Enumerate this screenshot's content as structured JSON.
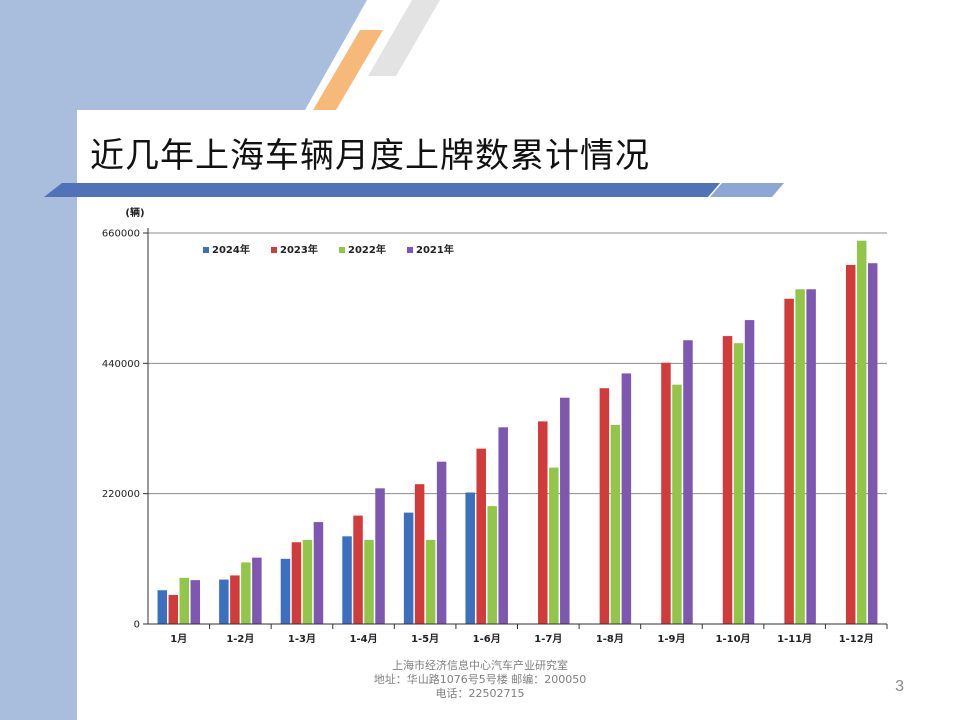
{
  "slide": {
    "title": "近几年上海车辆月度上牌数累计情况",
    "page_number": "3",
    "footer": {
      "line1": "上海市经济信息中心汽车产业研究室",
      "line2": "地址：华山路1076号5号楼   邮编：200050",
      "line3": "电话：22502715"
    }
  },
  "colors": {
    "left_band": "#a9bedd",
    "title_bar": "#4f72b8",
    "accent_orange": "#f7b97a",
    "accent_gray": "#e3e3e3"
  },
  "chart_data": {
    "type": "bar",
    "unit_label": "(辆)",
    "title": "",
    "xlabel": "",
    "ylabel": "",
    "ylim": [
      0,
      660000
    ],
    "yticks": [
      0,
      220000,
      440000,
      660000
    ],
    "ytick_labels": [
      "0",
      "220000",
      "440000",
      "660000"
    ],
    "grid": true,
    "legend_position": "top-left",
    "categories": [
      "1月",
      "1-2月",
      "1-3月",
      "1-4月",
      "1-5月",
      "1-6月",
      "1-7月",
      "1-8月",
      "1-9月",
      "1-10月",
      "1-11月",
      "1-12月"
    ],
    "series": [
      {
        "name": "2024年",
        "color": "#3b70c0",
        "values": [
          57000,
          75000,
          110000,
          148000,
          188000,
          222000,
          null,
          null,
          null,
          null,
          null,
          null
        ]
      },
      {
        "name": "2023年",
        "color": "#d13b3b",
        "values": [
          49000,
          82000,
          138000,
          183000,
          236000,
          296000,
          342000,
          398000,
          441000,
          486000,
          549000,
          606000
        ]
      },
      {
        "name": "2022年",
        "color": "#92c648",
        "values": [
          78000,
          104000,
          142000,
          142000,
          142000,
          199000,
          264000,
          336000,
          404000,
          474000,
          565000,
          647000
        ]
      },
      {
        "name": "2021年",
        "color": "#7d57b0",
        "values": [
          74000,
          112000,
          172000,
          229000,
          274000,
          332000,
          382000,
          423000,
          479000,
          513000,
          565000,
          609000
        ]
      }
    ]
  }
}
